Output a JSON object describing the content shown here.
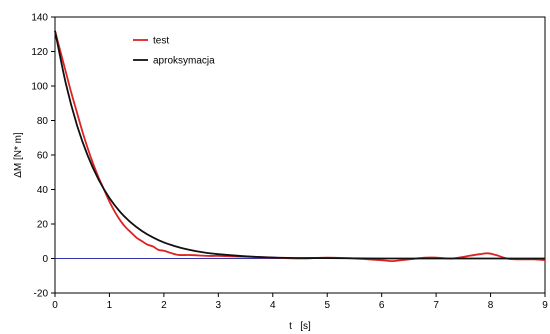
{
  "chart_data": {
    "type": "line",
    "title": "",
    "xlabel": "t   [s]",
    "ylabel": "ΔM   [N* m]",
    "xlim": [
      0,
      9
    ],
    "ylim": [
      -20,
      140
    ],
    "x_ticks": [
      0,
      1,
      2,
      3,
      4,
      5,
      6,
      7,
      8,
      9
    ],
    "y_ticks": [
      -20,
      0,
      20,
      40,
      60,
      80,
      100,
      120,
      140
    ],
    "grid": false,
    "legend_position": "top-left",
    "zero_line_color": "#3333aa",
    "series": [
      {
        "name": "test",
        "color": "#dd2222",
        "x": [
          0,
          0.1,
          0.2,
          0.3,
          0.4,
          0.5,
          0.6,
          0.7,
          0.8,
          0.9,
          1.0,
          1.1,
          1.2,
          1.3,
          1.4,
          1.5,
          1.6,
          1.7,
          1.8,
          1.9,
          2.0,
          2.1,
          2.2,
          2.3,
          2.5,
          2.8,
          3.0,
          3.5,
          4.0,
          4.5,
          5.0,
          5.5,
          6.0,
          6.2,
          6.5,
          6.8,
          7.0,
          7.3,
          7.6,
          7.8,
          7.95,
          8.1,
          8.3,
          8.5,
          8.8,
          9.0
        ],
        "y": [
          132,
          120,
          108,
          96,
          85,
          74,
          64,
          55,
          47,
          40,
          33,
          27,
          22,
          18,
          15,
          12,
          10,
          8,
          7,
          5,
          4.5,
          3.5,
          2.5,
          2,
          2,
          1.5,
          1.5,
          1,
          0.5,
          0,
          0.5,
          0,
          -1,
          -1.5,
          -0.5,
          0.5,
          0.5,
          0,
          1.5,
          2.5,
          3,
          2,
          0,
          -0.5,
          -0.5,
          -1
        ]
      },
      {
        "name": "aproksymacja",
        "color": "#111111",
        "x": [
          0,
          0.2,
          0.4,
          0.6,
          0.8,
          1.0,
          1.2,
          1.4,
          1.6,
          1.8,
          2.0,
          2.2,
          2.4,
          2.6,
          2.8,
          3.0,
          3.5,
          4.0,
          4.5,
          5.0,
          6.0,
          7.0,
          8.0,
          9.0
        ],
        "y": [
          132,
          101.3,
          77.7,
          59.7,
          45.8,
          35.1,
          26.9,
          20.7,
          15.9,
          12.2,
          9.3,
          7.2,
          5.5,
          4.2,
          3.2,
          2.5,
          1.3,
          0.6,
          0.3,
          0.2,
          0,
          0,
          0,
          0
        ]
      }
    ]
  }
}
